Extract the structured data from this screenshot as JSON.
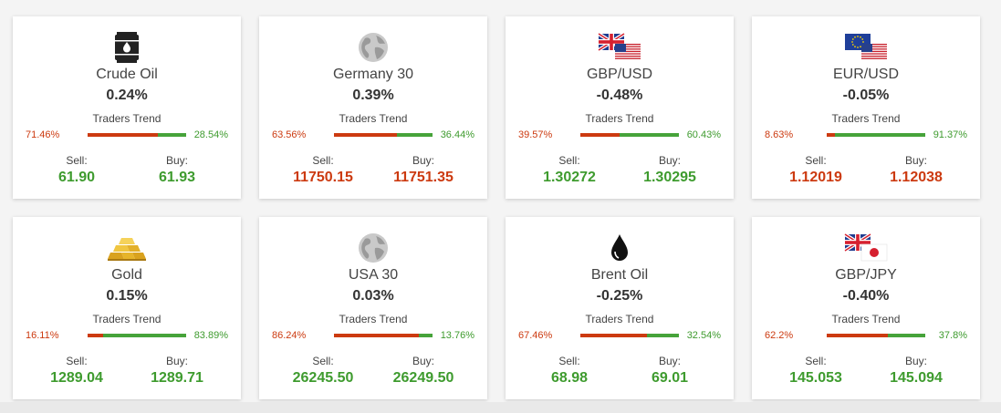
{
  "colors": {
    "up": "#3e9b2e",
    "down": "#cc3a10",
    "sell_bar": "#cc3a10",
    "buy_bar": "#46a33a"
  },
  "cards": [
    {
      "icon": "oil-barrel-icon",
      "title": "Crude Oil",
      "change": "0.24%",
      "trend_label": "Traders Trend",
      "sell_pct": "71.46%",
      "buy_pct": "28.54%",
      "sell_fraction": 0.7146,
      "sell_label": "Sell:",
      "buy_label": "Buy:",
      "sell": "61.90",
      "buy": "61.93",
      "price_color": "green"
    },
    {
      "icon": "globe-icon",
      "title": "Germany 30",
      "change": "0.39%",
      "trend_label": "Traders Trend",
      "sell_pct": "63.56%",
      "buy_pct": "36.44%",
      "sell_fraction": 0.6356,
      "sell_label": "Sell:",
      "buy_label": "Buy:",
      "sell": "11750.15",
      "buy": "11751.35",
      "price_color": "red"
    },
    {
      "icon": "gbp-usd-flags-icon",
      "title": "GBP/USD",
      "change": "-0.48%",
      "trend_label": "Traders Trend",
      "sell_pct": "39.57%",
      "buy_pct": "60.43%",
      "sell_fraction": 0.3957,
      "sell_label": "Sell:",
      "buy_label": "Buy:",
      "sell": "1.30272",
      "buy": "1.30295",
      "price_color": "green"
    },
    {
      "icon": "eur-usd-flags-icon",
      "title": "EUR/USD",
      "change": "-0.05%",
      "trend_label": "Traders Trend",
      "sell_pct": "8.63%",
      "buy_pct": "91.37%",
      "sell_fraction": 0.0863,
      "sell_label": "Sell:",
      "buy_label": "Buy:",
      "sell": "1.12019",
      "buy": "1.12038",
      "price_color": "red"
    },
    {
      "icon": "gold-bars-icon",
      "title": "Gold",
      "change": "0.15%",
      "trend_label": "Traders Trend",
      "sell_pct": "16.11%",
      "buy_pct": "83.89%",
      "sell_fraction": 0.1611,
      "sell_label": "Sell:",
      "buy_label": "Buy:",
      "sell": "1289.04",
      "buy": "1289.71",
      "price_color": "green"
    },
    {
      "icon": "globe-icon",
      "title": "USA 30",
      "change": "0.03%",
      "trend_label": "Traders Trend",
      "sell_pct": "86.24%",
      "buy_pct": "13.76%",
      "sell_fraction": 0.8624,
      "sell_label": "Sell:",
      "buy_label": "Buy:",
      "sell": "26245.50",
      "buy": "26249.50",
      "price_color": "green"
    },
    {
      "icon": "oil-drop-icon",
      "title": "Brent Oil",
      "change": "-0.25%",
      "trend_label": "Traders Trend",
      "sell_pct": "67.46%",
      "buy_pct": "32.54%",
      "sell_fraction": 0.6746,
      "sell_label": "Sell:",
      "buy_label": "Buy:",
      "sell": "68.98",
      "buy": "69.01",
      "price_color": "green"
    },
    {
      "icon": "gbp-jpy-flags-icon",
      "title": "GBP/JPY",
      "change": "-0.40%",
      "trend_label": "Traders Trend",
      "sell_pct": "62.2%",
      "buy_pct": "37.8%",
      "sell_fraction": 0.622,
      "sell_label": "Sell:",
      "buy_label": "Buy:",
      "sell": "145.053",
      "buy": "145.094",
      "price_color": "green"
    }
  ]
}
